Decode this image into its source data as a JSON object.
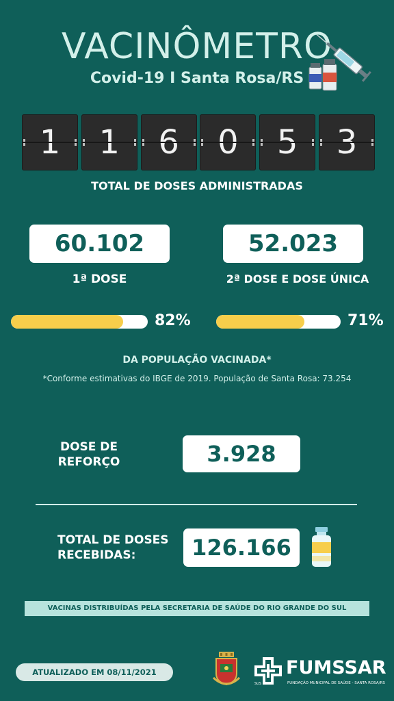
{
  "header": {
    "title": "VACINÔMETRO",
    "subtitle": "Covid-19 I Santa Rosa/RS"
  },
  "counter": {
    "digits": [
      "1",
      "1",
      "6",
      "0",
      "5",
      "3"
    ],
    "label": "TOTAL DE DOSES ADMINISTRADAS"
  },
  "doses": {
    "first": {
      "value": "60.102",
      "label": "1ª DOSE",
      "percent_text": "82%",
      "percent": 82
    },
    "second": {
      "value": "52.023",
      "label": "2ª DOSE E DOSE ÚNICA",
      "percent_text": "71%",
      "percent": 71
    }
  },
  "population": {
    "label": "DA POPULAÇÃO VACINADA*",
    "note": "*Conforme estimativas do IBGE de 2019. População de Santa Rosa: 73.254"
  },
  "booster": {
    "label_line1": "DOSE DE",
    "label_line2": "REFORÇO",
    "value": "3.928"
  },
  "received": {
    "label_line1": "TOTAL DE DOSES",
    "label_line2": "RECEBIDAS:",
    "value": "126.166"
  },
  "banner": "VACINAS DISTRIBUÍDAS PELA SECRETARIA DE SAÚDE DO RIO GRANDE DO SUL",
  "footer": {
    "updated": "ATUALIZADO EM 08/11/2021",
    "org_name": "FUMSSAR",
    "org_sub": "FUNDAÇÃO MUNICIPAL DE SAÚDE - SANTA ROSA/RS",
    "sus": "SUS"
  },
  "colors": {
    "background": "#0f5f59",
    "accent_yellow": "#f7ce4b",
    "text_light": "#d3f0ea"
  }
}
